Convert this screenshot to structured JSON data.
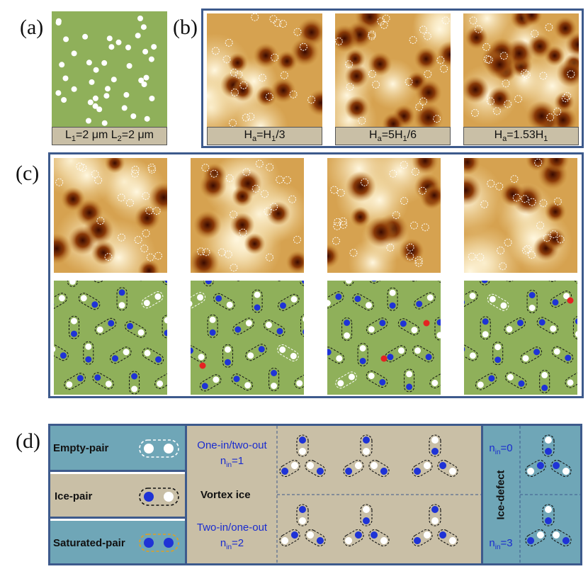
{
  "panels": {
    "a": "(a)",
    "b": "(b)",
    "c": "(c)",
    "d": "(d)"
  },
  "panel_a": {
    "label": "L₁=2 μm L₂=2 μm",
    "colors": {
      "bg": "#8fb05a",
      "dot": "#ffffff"
    }
  },
  "panel_b": {
    "labels": [
      "Hₐ=H₁/3",
      "Hₐ=5H₁/6",
      "Hₐ=1.53H₁"
    ]
  },
  "panel_d": {
    "legend": {
      "empty_pair": "Empty-pair",
      "ice_pair": "Ice-pair",
      "saturated_pair": "Saturated-pair"
    },
    "vortex_ice": {
      "title": "Vortex ice",
      "one_in": "One-in/two-out",
      "one_in_n": "nᵢₙ=1",
      "two_in": "Two-in/one-out",
      "two_in_n": "nᵢₙ=2"
    },
    "ice_defect": {
      "title": "Ice-defect",
      "n0": "nᵢₙ=0",
      "n3": "nᵢₙ=3"
    },
    "colors": {
      "teal": "#6fa6b7",
      "tan": "#c9bfa6",
      "border": "#3d5a8c",
      "blue": "#1f33d6",
      "red": "#e32222",
      "green": "#8fb05a"
    }
  }
}
